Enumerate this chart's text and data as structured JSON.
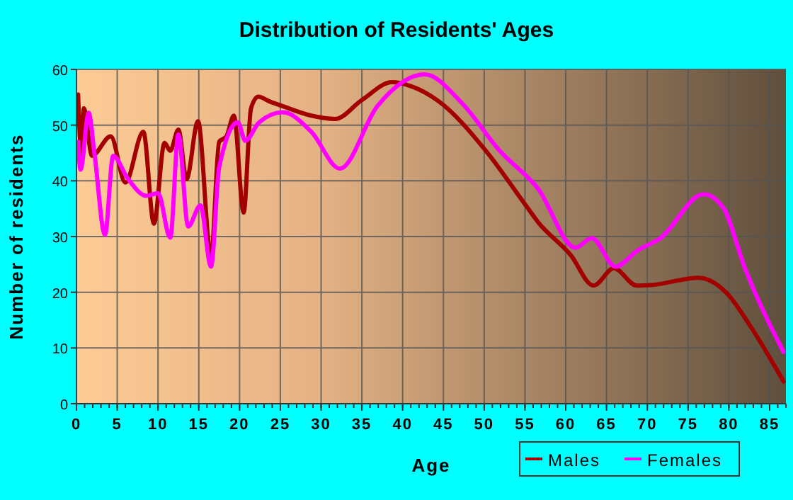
{
  "chart_data": {
    "type": "line",
    "title": "Distribution of Residents' Ages",
    "xlabel": "Age",
    "ylabel": "Number of residents",
    "xlim": [
      0,
      87
    ],
    "ylim": [
      0,
      60
    ],
    "xticks": [
      0,
      5,
      10,
      15,
      20,
      25,
      30,
      35,
      40,
      45,
      50,
      55,
      60,
      65,
      70,
      75,
      80,
      85
    ],
    "yticks": [
      0,
      10,
      20,
      30,
      40,
      50,
      60
    ],
    "grid": true,
    "legend": "bottom right",
    "marker": "none",
    "line_style": "solid",
    "series": [
      {
        "name": "Males",
        "color": "#a30000",
        "x": [
          0.2,
          0.6,
          0.9,
          1.9,
          4.2,
          6,
          8.2,
          9.5,
          10.8,
          11.5,
          12.5,
          13.5,
          14.9,
          16.5,
          17.5,
          18.4,
          19.3,
          20.5,
          21.4,
          22.3,
          23.6,
          25.3,
          28.8,
          31.7,
          35,
          38.7,
          41,
          44.4,
          50.2,
          54.9,
          56.6,
          60.6,
          63.4,
          65.9,
          68.7,
          70.5,
          76.3,
          79.7,
          82.6,
          86.7
        ],
        "values": [
          55.5,
          45,
          53,
          44.5,
          48,
          39.7,
          48.8,
          32.3,
          46.8,
          45.4,
          49.2,
          40.3,
          50.7,
          26.3,
          47,
          48,
          51.7,
          34.3,
          53,
          55.1,
          54.3,
          53.4,
          51.7,
          51.1,
          54.5,
          57.7,
          57,
          54.3,
          45.4,
          36,
          32.6,
          26.7,
          21.2,
          24.3,
          21.2,
          21.3,
          22.6,
          19.9,
          14,
          4
        ]
      },
      {
        "name": "Females",
        "color": "#ff00ff",
        "x": [
          0.2,
          0.5,
          1.5,
          2.2,
          3.5,
          4.5,
          6.25,
          8.6,
          10,
          11.5,
          12.5,
          13.7,
          15.2,
          16.5,
          17.5,
          19.8,
          20.7,
          22.4,
          25.3,
          28.8,
          32.3,
          36.9,
          42.7,
          47.3,
          51.9,
          56.6,
          61.2,
          63.2,
          66.1,
          68.8,
          71.6,
          76.9,
          79.3,
          82,
          86.7
        ],
        "values": [
          47,
          42,
          52.2,
          45,
          30.3,
          44.5,
          40.5,
          37.3,
          37.8,
          29.8,
          48.3,
          31.8,
          35.6,
          24.6,
          42.4,
          50.5,
          47.2,
          50.5,
          52.3,
          48.8,
          42.2,
          53.4,
          59.1,
          53.9,
          45.4,
          38.6,
          28,
          29.7,
          24.6,
          27.5,
          29.7,
          37.6,
          35.2,
          24.2,
          9.3
        ]
      }
    ]
  }
}
